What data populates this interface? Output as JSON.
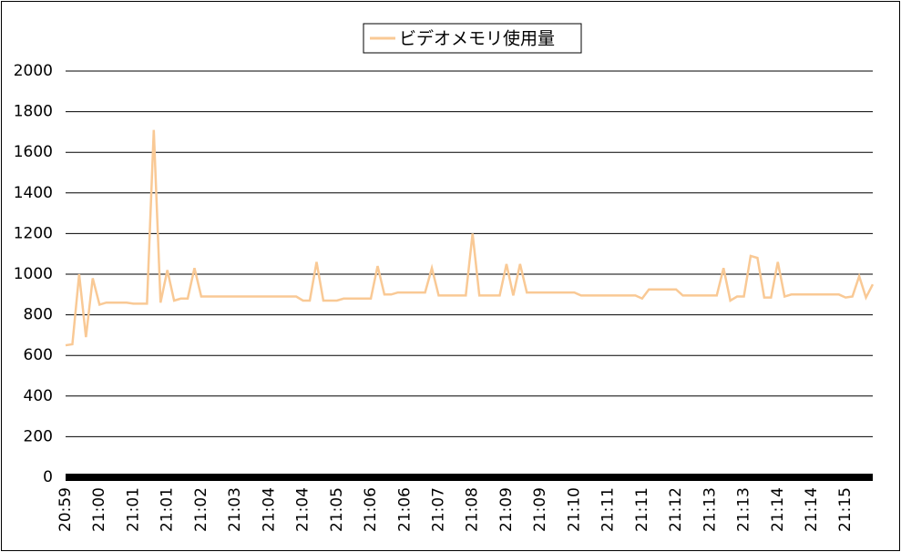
{
  "chart_data": {
    "type": "line",
    "categories": [
      "20:59",
      null,
      null,
      null,
      null,
      "21:00",
      null,
      null,
      null,
      null,
      "21:01",
      null,
      null,
      null,
      null,
      "21:01",
      null,
      null,
      null,
      null,
      "21:02",
      null,
      null,
      null,
      null,
      "21:03",
      null,
      null,
      null,
      null,
      "21:04",
      null,
      null,
      null,
      null,
      "21:04",
      null,
      null,
      null,
      null,
      "21:05",
      null,
      null,
      null,
      null,
      "21:06",
      null,
      null,
      null,
      null,
      "21:06",
      null,
      null,
      null,
      null,
      "21:07",
      null,
      null,
      null,
      null,
      "21:08",
      null,
      null,
      null,
      null,
      "21:09",
      null,
      null,
      null,
      null,
      "21:09",
      null,
      null,
      null,
      null,
      "21:10",
      null,
      null,
      null,
      null,
      "21:11",
      null,
      null,
      null,
      null,
      "21:11",
      null,
      null,
      null,
      null,
      "21:12",
      null,
      null,
      null,
      null,
      "21:13",
      null,
      null,
      null,
      null,
      "21:13",
      null,
      null,
      null,
      null,
      "21:14",
      null,
      null,
      null,
      null,
      "21:14",
      null,
      null,
      null,
      null,
      "21:15",
      null,
      null,
      null,
      null
    ],
    "series": [
      {
        "name": "ビデオメモリ使用量",
        "color": "#f9c995",
        "values": [
          650,
          655,
          1000,
          690,
          980,
          850,
          860,
          860,
          860,
          860,
          855,
          855,
          855,
          1710,
          860,
          1020,
          870,
          880,
          880,
          1030,
          890,
          890,
          890,
          890,
          890,
          890,
          890,
          890,
          890,
          890,
          890,
          890,
          890,
          890,
          890,
          870,
          870,
          1060,
          870,
          870,
          870,
          880,
          880,
          880,
          880,
          880,
          1040,
          900,
          900,
          910,
          910,
          910,
          910,
          910,
          1030,
          895,
          895,
          895,
          895,
          895,
          1200,
          895,
          895,
          895,
          895,
          1050,
          895,
          1050,
          910,
          910,
          910,
          910,
          910,
          910,
          910,
          910,
          895,
          895,
          895,
          895,
          895,
          895,
          895,
          895,
          895,
          880,
          925,
          925,
          925,
          925,
          925,
          895,
          895,
          895,
          895,
          895,
          895,
          1030,
          870,
          890,
          890,
          1090,
          1080,
          885,
          885,
          1060,
          890,
          900,
          900,
          900,
          900,
          900,
          900,
          900,
          900,
          885,
          890,
          990,
          885,
          950
        ]
      }
    ],
    "ylim": [
      0,
      2000
    ],
    "yticks": [
      0,
      200,
      400,
      600,
      800,
      1000,
      1200,
      1400,
      1600,
      1800,
      2000
    ],
    "grid": true,
    "legend": "top"
  }
}
